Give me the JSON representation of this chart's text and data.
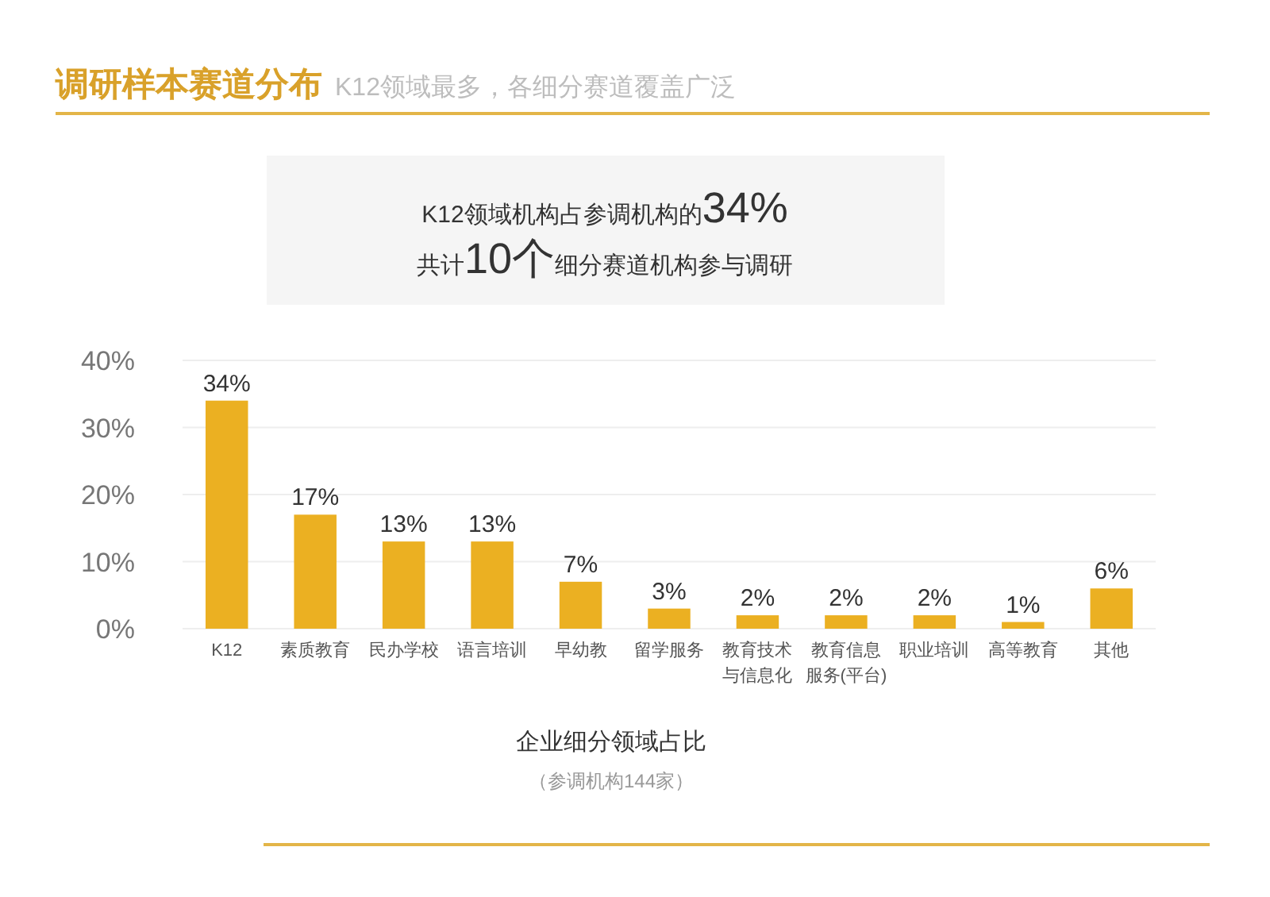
{
  "chart_data": {
    "type": "bar",
    "title": "调研样本赛道分布",
    "subtitle": "K12领域最多，各细分赛道覆盖广泛",
    "xlabel": "企业细分领域占比",
    "annotations": [
      "K12领域机构占参调机构的34%",
      "共计10个细分赛道机构参与调研",
      "（参调机构144家）"
    ],
    "categories": [
      "K12",
      "素质教育",
      "民办学校",
      "语言培训",
      "早幼教",
      "留学服务",
      "教育技术与信息化",
      "教育信息服务(平台)",
      "职业培训",
      "高等教育",
      "其他"
    ],
    "values": [
      34,
      17,
      13,
      13,
      7,
      3,
      2,
      2,
      2,
      1,
      6
    ],
    "color": "#ebb022",
    "ylim": [
      0,
      40
    ],
    "yticks": [
      {
        "value": 0,
        "label": "0%"
      },
      {
        "value": 10,
        "label": "10%"
      },
      {
        "value": 20,
        "label": "20%"
      },
      {
        "value": 30,
        "label": "30%"
      },
      {
        "value": 40,
        "label": "40%"
      }
    ],
    "value_labels": [
      "34%",
      "17%",
      "13%",
      "13%",
      "7%",
      "3%",
      "2%",
      "2%",
      "2%",
      "1%",
      "6%"
    ],
    "grid": "y"
  }
}
